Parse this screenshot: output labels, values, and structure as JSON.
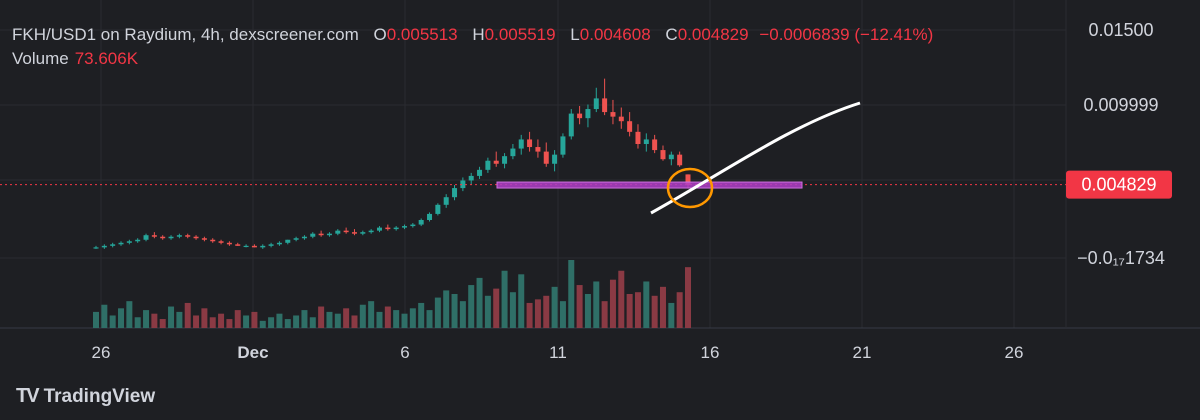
{
  "header": {
    "symbol": "FKH/USD1 on Raydium, 4h, dexscreener.com",
    "open_label": "O",
    "open": "0.005513",
    "high_label": "H",
    "high": "0.005519",
    "low_label": "L",
    "low": "0.004608",
    "close_label": "C",
    "close": "0.004829",
    "change": "−0.0006839 (−12.41%)",
    "volume_label": "Volume",
    "volume": "73.606K"
  },
  "brand": {
    "name": "TradingView",
    "logo_text": "TV"
  },
  "colors": {
    "up": "#26a69a",
    "down": "#ef5350",
    "up_vol": "#2f6f67",
    "down_vol": "#8a3a44",
    "support": "#b040c8",
    "annotation": "#ff9800",
    "projection": "#ffffff",
    "price_tag": "#f23645"
  },
  "chart_data": {
    "type": "candlestick",
    "y_axis_labels": [
      "0.01500",
      "0.009999",
      "0.004829",
      "−0.0₁₇1734"
    ],
    "x_axis_labels": [
      "26",
      "Dec",
      "6",
      "11",
      "16",
      "21",
      "26"
    ],
    "last_price": 0.004829,
    "price_tag": "0.004829",
    "candles_ohlc": [
      [
        0.0007,
        0.0008,
        0.0006,
        0.0007
      ],
      [
        0.0007,
        0.0009,
        0.0006,
        0.0008
      ],
      [
        0.0008,
        0.001,
        0.0007,
        0.0009
      ],
      [
        0.0009,
        0.0011,
        0.0008,
        0.001
      ],
      [
        0.001,
        0.0012,
        0.0009,
        0.0011
      ],
      [
        0.0011,
        0.0013,
        0.001,
        0.0012
      ],
      [
        0.0012,
        0.0016,
        0.0011,
        0.0015
      ],
      [
        0.0015,
        0.0017,
        0.0013,
        0.0014
      ],
      [
        0.0014,
        0.0015,
        0.0012,
        0.0013
      ],
      [
        0.0013,
        0.0015,
        0.0012,
        0.0014
      ],
      [
        0.0014,
        0.0016,
        0.0013,
        0.0015
      ],
      [
        0.0015,
        0.0016,
        0.0013,
        0.0014
      ],
      [
        0.0014,
        0.0015,
        0.0012,
        0.0013
      ],
      [
        0.0013,
        0.0014,
        0.0011,
        0.0012
      ],
      [
        0.0012,
        0.0013,
        0.001,
        0.0011
      ],
      [
        0.0011,
        0.0012,
        0.0009,
        0.001
      ],
      [
        0.001,
        0.0011,
        0.0008,
        0.0009
      ],
      [
        0.0009,
        0.001,
        0.0008,
        0.0008
      ],
      [
        0.0008,
        0.0009,
        0.0007,
        0.0008
      ],
      [
        0.0008,
        0.0009,
        0.0007,
        0.0007
      ],
      [
        0.0007,
        0.0009,
        0.0006,
        0.0008
      ],
      [
        0.0008,
        0.001,
        0.0007,
        0.0009
      ],
      [
        0.0009,
        0.0011,
        0.0008,
        0.001
      ],
      [
        0.001,
        0.0012,
        0.0009,
        0.0012
      ],
      [
        0.0012,
        0.0014,
        0.0011,
        0.0013
      ],
      [
        0.0013,
        0.0015,
        0.0012,
        0.0014
      ],
      [
        0.0014,
        0.0017,
        0.0013,
        0.0016
      ],
      [
        0.0016,
        0.0018,
        0.0014,
        0.0015
      ],
      [
        0.0015,
        0.0017,
        0.0014,
        0.0016
      ],
      [
        0.0016,
        0.0019,
        0.0015,
        0.0018
      ],
      [
        0.0018,
        0.002,
        0.0016,
        0.0017
      ],
      [
        0.0017,
        0.0019,
        0.0015,
        0.0016
      ],
      [
        0.0016,
        0.0018,
        0.0015,
        0.0017
      ],
      [
        0.0017,
        0.0019,
        0.0016,
        0.0018
      ],
      [
        0.0018,
        0.0021,
        0.0017,
        0.002
      ],
      [
        0.002,
        0.0022,
        0.0018,
        0.0019
      ],
      [
        0.0019,
        0.0021,
        0.0018,
        0.002
      ],
      [
        0.002,
        0.0022,
        0.0019,
        0.0021
      ],
      [
        0.0021,
        0.0023,
        0.002,
        0.0022
      ],
      [
        0.0022,
        0.0026,
        0.0021,
        0.0025
      ],
      [
        0.0025,
        0.003,
        0.0024,
        0.0029
      ],
      [
        0.0029,
        0.0036,
        0.0028,
        0.0035
      ],
      [
        0.0035,
        0.0042,
        0.0033,
        0.004
      ],
      [
        0.004,
        0.0048,
        0.0038,
        0.0046
      ],
      [
        0.0046,
        0.0053,
        0.0044,
        0.0051
      ],
      [
        0.0051,
        0.0056,
        0.0048,
        0.0054
      ],
      [
        0.0054,
        0.006,
        0.0052,
        0.0058
      ],
      [
        0.0058,
        0.0066,
        0.0056,
        0.0064
      ],
      [
        0.0064,
        0.007,
        0.006,
        0.0062
      ],
      [
        0.0062,
        0.0069,
        0.0059,
        0.0067
      ],
      [
        0.0067,
        0.0075,
        0.0065,
        0.0072
      ],
      [
        0.0072,
        0.0081,
        0.0068,
        0.0078
      ],
      [
        0.0078,
        0.0083,
        0.007,
        0.0073
      ],
      [
        0.0073,
        0.0078,
        0.0066,
        0.007
      ],
      [
        0.007,
        0.0076,
        0.006,
        0.0062
      ],
      [
        0.0062,
        0.0071,
        0.0057,
        0.0068
      ],
      [
        0.0068,
        0.0082,
        0.0066,
        0.008
      ],
      [
        0.008,
        0.0098,
        0.0078,
        0.0095
      ],
      [
        0.0095,
        0.01,
        0.0088,
        0.0092
      ],
      [
        0.0092,
        0.0101,
        0.0086,
        0.0098
      ],
      [
        0.0098,
        0.0112,
        0.0096,
        0.0105
      ],
      [
        0.0105,
        0.0118,
        0.0094,
        0.0096
      ],
      [
        0.0096,
        0.0104,
        0.0088,
        0.0093
      ],
      [
        0.0093,
        0.0099,
        0.0085,
        0.009
      ],
      [
        0.009,
        0.0096,
        0.008,
        0.0083
      ],
      [
        0.0083,
        0.0088,
        0.0072,
        0.0075
      ],
      [
        0.0075,
        0.0082,
        0.007,
        0.0078
      ],
      [
        0.0078,
        0.0081,
        0.0069,
        0.0071
      ],
      [
        0.0071,
        0.0074,
        0.0064,
        0.0065
      ],
      [
        0.0065,
        0.007,
        0.0061,
        0.0068
      ],
      [
        0.0068,
        0.007,
        0.006,
        0.0061
      ],
      [
        0.0055,
        0.0055,
        0.0046,
        0.0048
      ]
    ],
    "volume": [
      18,
      26,
      14,
      22,
      30,
      12,
      20,
      16,
      10,
      24,
      18,
      28,
      14,
      22,
      12,
      16,
      10,
      20,
      14,
      18,
      8,
      12,
      16,
      10,
      14,
      20,
      12,
      24,
      18,
      16,
      22,
      14,
      26,
      30,
      18,
      24,
      20,
      16,
      22,
      28,
      20,
      34,
      42,
      38,
      30,
      48,
      56,
      36,
      44,
      64,
      40,
      60,
      28,
      32,
      36,
      46,
      30,
      76,
      48,
      38,
      52,
      30,
      54,
      64,
      38,
      40,
      52,
      36,
      46,
      28,
      40,
      68
    ],
    "volume_ticks": [
      "hidden"
    ],
    "annotations": {
      "support_zone": 0.0048,
      "current_price_dotted_line": 0.004829,
      "projection_line": "white upward curve",
      "circle_highlight": "orange ellipse at last candle"
    }
  }
}
